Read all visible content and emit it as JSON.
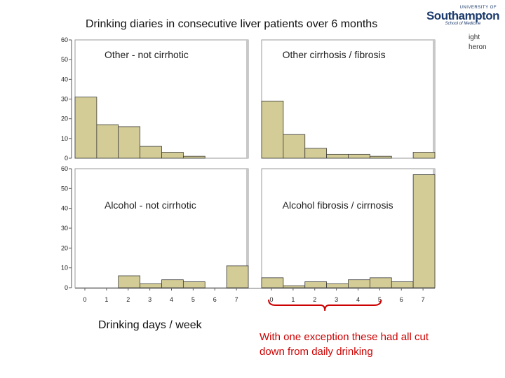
{
  "header": {
    "title": "Drinking diaries in consecutive liver patients over 6 months",
    "logo_line1": "UNIVERSITY OF",
    "logo_line2": "Southampton",
    "logo_line3": "School of Medicine",
    "side_text_1": "ight",
    "side_text_2": "heron"
  },
  "footer": {
    "xlabel": "Drinking days / week",
    "annotation": "With one exception these had all cut down from daily drinking"
  },
  "colors": {
    "bar": "#d4cc96",
    "bar_stroke": "#3a3a3a",
    "panel_bg": "#ffffff",
    "annotation": "#cc0000"
  },
  "chart_data": {
    "type": "bar",
    "title": "Drinking diaries in consecutive liver patients over 6 months",
    "xlabel": "Drinking days / week",
    "ylabel": "",
    "ylim": [
      0,
      60
    ],
    "y_ticks": [
      "0",
      "10",
      "20",
      "30",
      "40",
      "50",
      "60"
    ],
    "x_ticks": [
      "0",
      "1",
      "2",
      "3",
      "4",
      "5",
      "6",
      "7"
    ],
    "panels": [
      {
        "title": "Other - not cirrhotic",
        "categories": [
          0,
          1,
          2,
          3,
          4,
          5,
          6,
          7
        ],
        "values": [
          31,
          17,
          16,
          6,
          3,
          1,
          0,
          0
        ]
      },
      {
        "title": "Other cirrhosis / fibrosis",
        "categories": [
          0,
          1,
          2,
          3,
          4,
          5,
          6,
          7
        ],
        "values": [
          29,
          12,
          5,
          2,
          2,
          1,
          0,
          3
        ]
      },
      {
        "title": "Alcohol - not cirrhotic",
        "categories": [
          0,
          1,
          2,
          3,
          4,
          5,
          6,
          7
        ],
        "values": [
          0,
          0,
          6,
          2,
          4,
          3,
          0,
          11
        ]
      },
      {
        "title": "Alcohol fibrosis / cirrnosis",
        "categories": [
          0,
          1,
          2,
          3,
          4,
          5,
          6,
          7
        ],
        "values": [
          5,
          1,
          3,
          2,
          4,
          5,
          3,
          57
        ]
      }
    ],
    "annotation": {
      "text": "With one exception these had all cut down from daily drinking",
      "brace_from": 0,
      "brace_to": 5
    }
  }
}
